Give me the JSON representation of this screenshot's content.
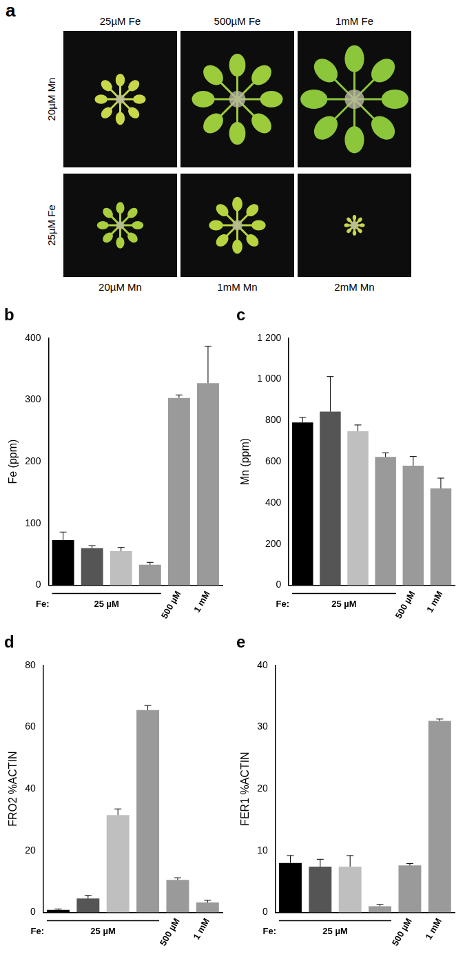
{
  "panel_a": {
    "label": "a",
    "column_labels": [
      "25µM Fe",
      "500µM Fe",
      "1mM Fe"
    ],
    "row_labels": [
      "20µM Mn",
      "25µM Fe"
    ],
    "bottom_labels": [
      "20µM Mn",
      "1mM Mn",
      "2mM Mn"
    ]
  },
  "chart_data": [
    {
      "type": "bar",
      "title": "b",
      "y_label": "Fe (ppm)",
      "categories": [
        null,
        null,
        null,
        null,
        "500 µM",
        "1 mM"
      ],
      "values": [
        73,
        60,
        55,
        33,
        303,
        327
      ],
      "errors": [
        13,
        4,
        6,
        4,
        5,
        60
      ],
      "colors": [
        "#000000",
        "#555555",
        "#bfbfbf",
        "#9a9a9a",
        "#9a9a9a",
        "#9a9a9a"
      ],
      "ylim": [
        0,
        400
      ],
      "yticks": [
        0,
        100,
        200,
        300,
        400
      ],
      "annotations": [
        "Fe:",
        "25 µM"
      ],
      "grid": false
    },
    {
      "type": "bar",
      "title": "c",
      "y_label": "Mn (ppm)",
      "categories": [
        null,
        null,
        null,
        null,
        "500 µM",
        "1 mM"
      ],
      "values": [
        790,
        843,
        748,
        623,
        580,
        470
      ],
      "errors": [
        25,
        170,
        30,
        20,
        45,
        50
      ],
      "colors": [
        "#000000",
        "#555555",
        "#bfbfbf",
        "#9a9a9a",
        "#9a9a9a",
        "#9a9a9a"
      ],
      "ylim": [
        0,
        1200
      ],
      "yticks": [
        0,
        200,
        400,
        600,
        800,
        {
          "value": 1000,
          "label": "1 000"
        },
        {
          "value": 1200,
          "label": "1 200"
        }
      ],
      "annotations": [
        "Fe:",
        "25 µM"
      ],
      "grid": false
    },
    {
      "type": "bar",
      "title": "d",
      "y_label": "FRO2 %ACTIN",
      "categories": [
        null,
        null,
        null,
        null,
        "500 µM",
        "1 mM"
      ],
      "values": [
        0.8,
        4.5,
        31.5,
        65.5,
        10.5,
        3.2
      ],
      "errors": [
        0.3,
        1,
        2,
        1.5,
        0.7,
        0.7
      ],
      "colors": [
        "#000000",
        "#555555",
        "#bfbfbf",
        "#9a9a9a",
        "#9a9a9a",
        "#9a9a9a"
      ],
      "ylim": [
        0,
        80
      ],
      "yticks": [
        0,
        20,
        40,
        60,
        80
      ],
      "annotations": [
        "Fe:",
        "25 µM"
      ],
      "grid": false
    },
    {
      "type": "bar",
      "title": "e",
      "y_label": "FER1 %ACTIN",
      "categories": [
        null,
        null,
        null,
        null,
        "500 µM",
        "1 mM"
      ],
      "values": [
        8,
        7.4,
        7.4,
        1,
        7.6,
        31
      ],
      "errors": [
        1.2,
        1.2,
        1.8,
        0.3,
        0.3,
        0.3
      ],
      "colors": [
        "#000000",
        "#555555",
        "#bfbfbf",
        "#9a9a9a",
        "#9a9a9a",
        "#9a9a9a"
      ],
      "ylim": [
        0,
        40
      ],
      "yticks": [
        0,
        10,
        20,
        30,
        40
      ],
      "annotations": [
        "Fe:",
        "25 µM"
      ],
      "grid": false
    }
  ]
}
